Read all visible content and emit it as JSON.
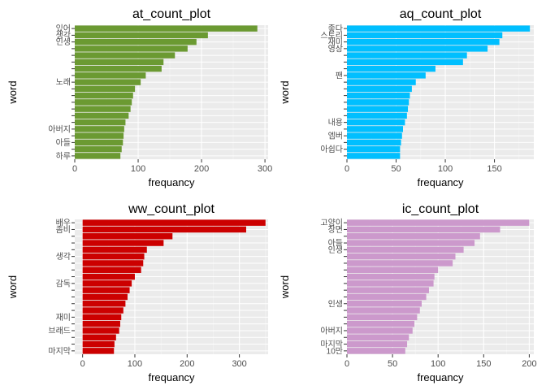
{
  "chart_data": [
    {
      "type": "bar",
      "orientation": "horizontal",
      "title": "at_count_plot",
      "xlabel": "frequancy",
      "ylabel": "word",
      "color": "#6b9a32",
      "xlim": [
        0,
        305
      ],
      "xticks": [
        0,
        100,
        200,
        300
      ],
      "values": [
        288,
        210,
        192,
        178,
        158,
        140,
        137,
        112,
        104,
        95,
        92,
        90,
        88,
        85,
        80,
        78,
        77,
        76,
        74,
        72
      ],
      "category_labels": [
        {
          "index": 0,
          "text": "있어"
        },
        {
          "index": 1,
          "text": "생각"
        },
        {
          "index": 2,
          "text": "인생"
        },
        {
          "index": 8,
          "text": "노래"
        },
        {
          "index": 15,
          "text": "아버지"
        },
        {
          "index": 17,
          "text": "아들"
        },
        {
          "index": 19,
          "text": "하루"
        }
      ]
    },
    {
      "type": "bar",
      "orientation": "horizontal",
      "title": "aq_count_plot",
      "xlabel": "frequancy",
      "ylabel": "word",
      "color": "#00bfff",
      "xlim": [
        0,
        190
      ],
      "xticks": [
        0,
        50,
        100,
        150
      ],
      "values": [
        186,
        158,
        155,
        143,
        122,
        118,
        90,
        80,
        70,
        66,
        64,
        63,
        62,
        61,
        59,
        57,
        56,
        55,
        54,
        54
      ],
      "category_labels": [
        {
          "index": 0,
          "text": "좋다"
        },
        {
          "index": 1,
          "text": "스토리"
        },
        {
          "index": 2,
          "text": "재미"
        },
        {
          "index": 3,
          "text": "영상"
        },
        {
          "index": 7,
          "text": "팬"
        },
        {
          "index": 14,
          "text": "내용"
        },
        {
          "index": 16,
          "text": "엠버"
        },
        {
          "index": 18,
          "text": "아쉽다"
        }
      ]
    },
    {
      "type": "bar",
      "orientation": "horizontal",
      "title": "ww_count_plot",
      "xlabel": "frequancy",
      "ylabel": "word",
      "color": "#cc0000",
      "xlim": [
        -15,
        355
      ],
      "xticks": [
        0,
        100,
        200,
        300
      ],
      "values": [
        350,
        313,
        172,
        155,
        123,
        118,
        116,
        112,
        100,
        94,
        90,
        86,
        82,
        78,
        74,
        72,
        70,
        64,
        61,
        60
      ],
      "category_labels": [
        {
          "index": 0,
          "text": "배우"
        },
        {
          "index": 1,
          "text": "좀비"
        },
        {
          "index": 5,
          "text": "생각"
        },
        {
          "index": 9,
          "text": "감독"
        },
        {
          "index": 14,
          "text": "재미"
        },
        {
          "index": 16,
          "text": "브래드"
        },
        {
          "index": 19,
          "text": "마지막"
        }
      ]
    },
    {
      "type": "bar",
      "orientation": "horizontal",
      "title": "ic_count_plot",
      "xlabel": "frequancy",
      "ylabel": "word",
      "color": "#cc99cc",
      "xlim": [
        0,
        205
      ],
      "xticks": [
        0,
        50,
        100,
        150,
        200
      ],
      "values": [
        200,
        168,
        146,
        140,
        128,
        119,
        116,
        100,
        96,
        95,
        90,
        87,
        82,
        80,
        77,
        74,
        72,
        68,
        66,
        64
      ],
      "category_labels": [
        {
          "index": 0,
          "text": "고양이"
        },
        {
          "index": 1,
          "text": "장면"
        },
        {
          "index": 3,
          "text": "아들"
        },
        {
          "index": 4,
          "text": "인생"
        },
        {
          "index": 12,
          "text": "인생"
        },
        {
          "index": 16,
          "text": "아버지"
        },
        {
          "index": 18,
          "text": "마지막"
        },
        {
          "index": 19,
          "text": "10만"
        }
      ]
    }
  ]
}
